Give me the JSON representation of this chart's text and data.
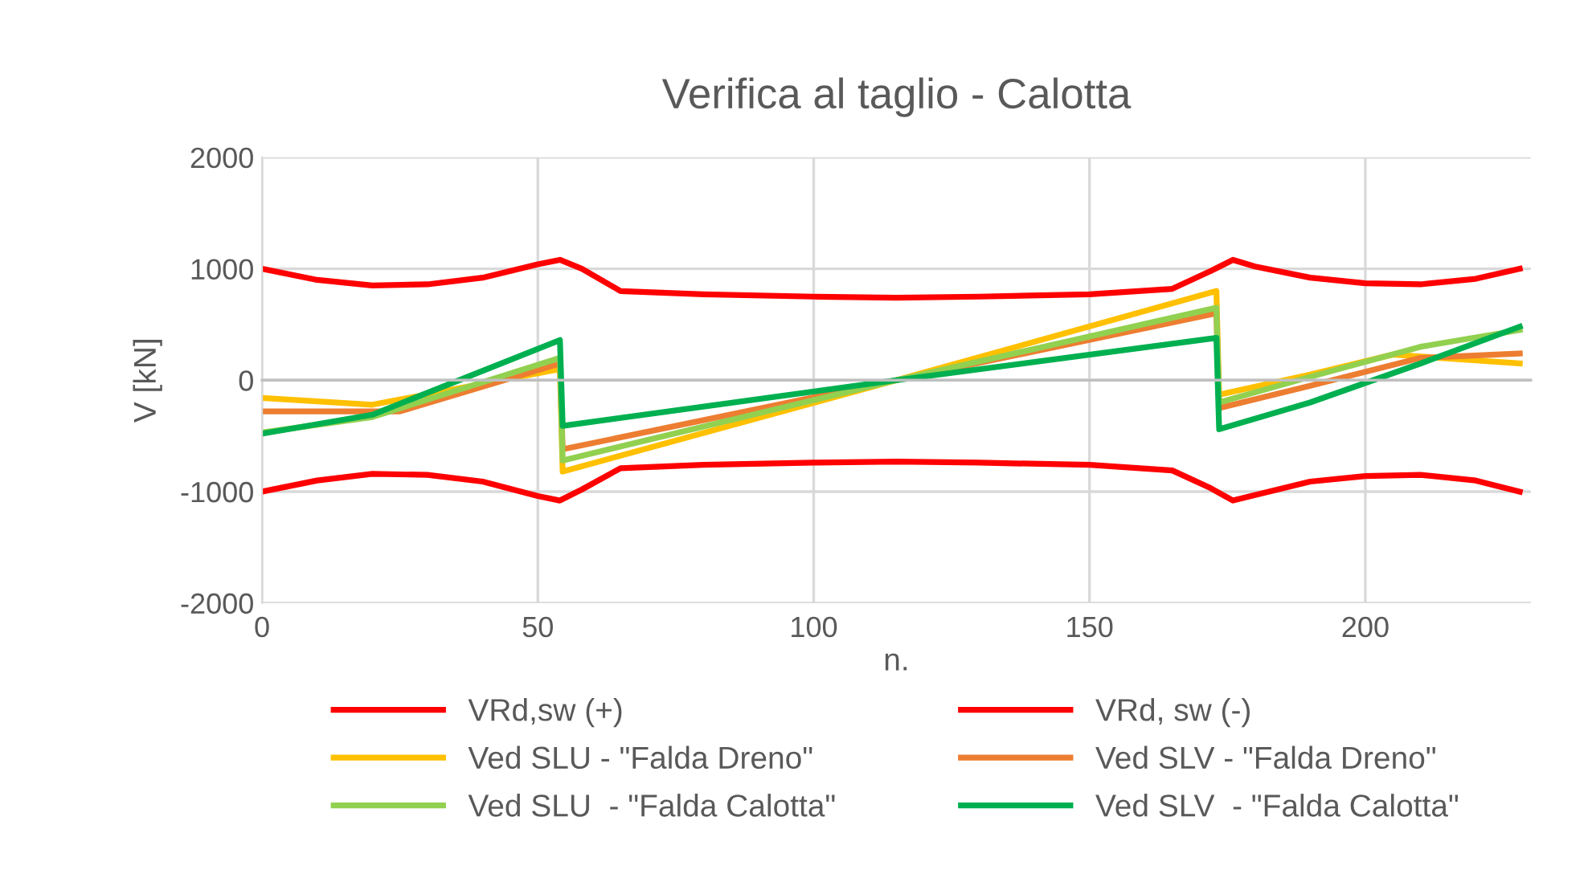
{
  "chart_data": {
    "type": "line",
    "title": "Verifica al taglio - Calotta",
    "xlabel": "n.",
    "ylabel": "V [kN]",
    "xlim": [
      0,
      230
    ],
    "xticks": [
      0,
      50,
      100,
      150,
      200
    ],
    "ylim": [
      -2000,
      2000
    ],
    "yticks": [
      -2000,
      -1000,
      0,
      1000,
      2000
    ],
    "grid": true,
    "legend": "bottom",
    "marker": "none",
    "line_style": "solid",
    "series": [
      {
        "name": "VRd,sw (+)",
        "color": "#ff0000",
        "x": [
          0,
          10,
          20,
          30,
          40,
          50,
          54,
          58,
          65,
          80,
          100,
          115,
          130,
          150,
          165,
          172,
          176,
          180,
          190,
          200,
          210,
          220,
          228
        ],
        "values": [
          1000,
          900,
          850,
          860,
          920,
          1040,
          1080,
          1000,
          800,
          770,
          750,
          740,
          750,
          770,
          820,
          980,
          1080,
          1020,
          920,
          870,
          860,
          910,
          1000
        ]
      },
      {
        "name": "VRd, sw (-)",
        "color": "#ff0000",
        "x": [
          0,
          10,
          20,
          30,
          40,
          50,
          54,
          58,
          65,
          80,
          100,
          115,
          130,
          150,
          165,
          172,
          176,
          180,
          190,
          200,
          210,
          220,
          228
        ],
        "values": [
          -1000,
          -900,
          -840,
          -850,
          -910,
          -1040,
          -1080,
          -980,
          -790,
          -760,
          -740,
          -730,
          -740,
          -760,
          -810,
          -970,
          -1080,
          -1030,
          -910,
          -860,
          -850,
          -900,
          -1000
        ]
      },
      {
        "name": "Ved SLU - \"Falda Dreno\"",
        "color": "#ffc000",
        "x": [
          0,
          20,
          54,
          54.5,
          115,
          173,
          173.5,
          190,
          205,
          228
        ],
        "values": [
          -160,
          -220,
          100,
          -820,
          0,
          800,
          -130,
          50,
          230,
          150
        ]
      },
      {
        "name": "Ved SLV - \"Falda Dreno\"",
        "color": "#ed7d31",
        "x": [
          0,
          25,
          54,
          54.5,
          115,
          173,
          173.5,
          190,
          210,
          228
        ],
        "values": [
          -280,
          -280,
          150,
          -620,
          0,
          600,
          -250,
          -50,
          200,
          240
        ]
      },
      {
        "name": "Ved SLU  - \"Falda Calotta\"",
        "color": "#92d050",
        "x": [
          0,
          20,
          54,
          54.5,
          115,
          173,
          173.5,
          190,
          210,
          228
        ],
        "values": [
          -470,
          -330,
          200,
          -720,
          0,
          650,
          -200,
          30,
          300,
          450
        ]
      },
      {
        "name": "Ved SLV  - \"Falda Calotta\"",
        "color": "#00b050",
        "x": [
          0,
          20,
          54,
          54.5,
          115,
          173,
          173.5,
          190,
          210,
          228
        ],
        "values": [
          -480,
          -310,
          360,
          -410,
          0,
          380,
          -440,
          -200,
          150,
          480
        ]
      }
    ]
  }
}
